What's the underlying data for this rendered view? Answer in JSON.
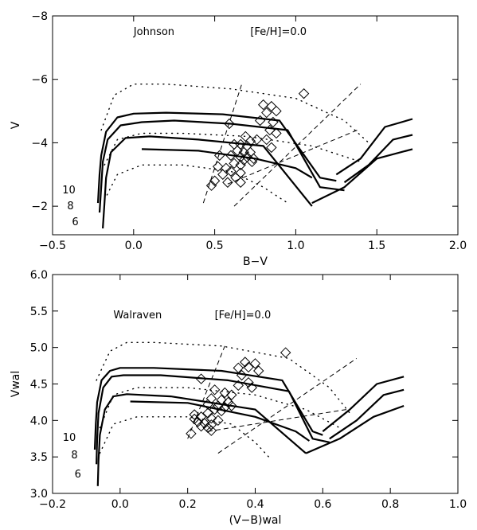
{
  "chart_data": [
    {
      "type": "scatter",
      "xlabel": "B−V",
      "ylabel": "V",
      "xlim": [
        -0.5,
        2.0
      ],
      "ylim": [
        -1.1,
        -8.0
      ],
      "y_inverted": true,
      "grid": false,
      "xticks": [
        "−0.5",
        "0.0",
        "0.5",
        "1.0",
        "1.5",
        "2.0"
      ],
      "xtick_values": [
        -0.5,
        0.0,
        0.5,
        1.0,
        1.5,
        2.0
      ],
      "yticks": [
        "−2",
        "−4",
        "−6",
        "−8"
      ],
      "ytick_values": [
        -2,
        -4,
        -6,
        -8
      ],
      "annotations": [
        {
          "text": "Johnson",
          "x": 0.0,
          "y": -7.4
        },
        {
          "text": "[Fe/H]=0.0",
          "x": 0.72,
          "y": -7.4
        },
        {
          "text": "10",
          "x": -0.44,
          "y": -2.4
        },
        {
          "text": "8",
          "x": -0.41,
          "y": -1.9
        },
        {
          "text": "6",
          "x": -0.38,
          "y": -1.4
        }
      ],
      "tracks": [
        {
          "label": "10",
          "style": "solid",
          "x": [
            -0.22,
            -0.21,
            -0.2,
            -0.17,
            -0.1,
            0.0,
            0.2,
            0.55,
            0.9,
            1.15,
            1.25
          ],
          "y": [
            -2.1,
            -3.0,
            -3.6,
            -4.35,
            -4.8,
            -4.92,
            -4.95,
            -4.9,
            -4.7,
            -2.9,
            -2.8
          ]
        },
        {
          "label": "10b",
          "style": "solid",
          "x": [
            1.25,
            1.4,
            1.55,
            1.72
          ],
          "y": [
            -3.0,
            -3.5,
            -4.5,
            -4.75
          ]
        },
        {
          "label": "8",
          "style": "solid",
          "x": [
            -0.21,
            -0.2,
            -0.19,
            -0.16,
            -0.08,
            0.05,
            0.25,
            0.6,
            0.95,
            1.15,
            1.3
          ],
          "y": [
            -1.8,
            -2.6,
            -3.4,
            -4.1,
            -4.55,
            -4.65,
            -4.7,
            -4.6,
            -4.4,
            -2.6,
            -2.5
          ]
        },
        {
          "label": "8b",
          "style": "solid",
          "x": [
            1.3,
            1.45,
            1.6,
            1.72
          ],
          "y": [
            -2.75,
            -3.3,
            -4.1,
            -4.25
          ]
        },
        {
          "label": "6",
          "style": "solid",
          "x": [
            -0.19,
            -0.18,
            -0.17,
            -0.14,
            -0.05,
            0.1,
            0.4,
            0.8,
            1.1
          ],
          "y": [
            -1.3,
            -2.1,
            -2.9,
            -3.7,
            -4.15,
            -4.2,
            -4.1,
            -3.9,
            -2.0
          ]
        },
        {
          "label": "6b",
          "style": "solid",
          "x": [
            0.05,
            0.4,
            0.75,
            1.0,
            1.1
          ],
          "y": [
            -3.8,
            -3.75,
            -3.5,
            -3.2,
            -2.9
          ]
        },
        {
          "label": "6c",
          "style": "solid",
          "x": [
            1.1,
            1.3,
            1.5,
            1.72
          ],
          "y": [
            -2.1,
            -2.6,
            -3.5,
            -3.8
          ]
        },
        {
          "label": "12",
          "style": "dotted",
          "x": [
            -0.2,
            -0.12,
            0.0,
            0.2,
            0.6,
            1.0,
            1.3,
            1.45
          ],
          "y": [
            -4.4,
            -5.5,
            -5.85,
            -5.85,
            -5.7,
            -5.4,
            -4.7,
            -4.0
          ]
        },
        {
          "label": "9",
          "style": "dotted",
          "x": [
            -0.18,
            -0.1,
            0.05,
            0.3,
            0.7,
            1.1,
            1.4
          ],
          "y": [
            -3.3,
            -4.1,
            -4.3,
            -4.3,
            -4.2,
            -3.9,
            -3.4
          ]
        },
        {
          "label": "7",
          "style": "dotted",
          "x": [
            -0.18,
            -0.1,
            0.05,
            0.3,
            0.6,
            0.8,
            0.95
          ],
          "y": [
            -2.2,
            -3.0,
            -3.3,
            -3.3,
            -3.1,
            -2.6,
            -2.1
          ]
        }
      ],
      "instability_strip": [
        {
          "x": [
            0.43,
            0.67
          ],
          "y": [
            -2.1,
            -5.9
          ]
        },
        {
          "x": [
            0.62,
            1.4
          ],
          "y": [
            -2.0,
            -5.85
          ]
        },
        {
          "x": [
            0.58,
            1.38
          ],
          "y": [
            -2.7,
            -4.4
          ]
        }
      ],
      "points": [
        {
          "x": 1.05,
          "y": -5.55
        },
        {
          "x": 0.8,
          "y": -5.2
        },
        {
          "x": 0.85,
          "y": -5.15
        },
        {
          "x": 0.88,
          "y": -5.0
        },
        {
          "x": 0.82,
          "y": -4.95
        },
        {
          "x": 0.78,
          "y": -4.7
        },
        {
          "x": 0.86,
          "y": -4.65
        },
        {
          "x": 0.59,
          "y": -4.6
        },
        {
          "x": 0.84,
          "y": -4.4
        },
        {
          "x": 0.88,
          "y": -4.3
        },
        {
          "x": 0.69,
          "y": -4.2
        },
        {
          "x": 0.76,
          "y": -4.1
        },
        {
          "x": 0.82,
          "y": -4.1
        },
        {
          "x": 0.72,
          "y": -4.05
        },
        {
          "x": 0.62,
          "y": -3.95
        },
        {
          "x": 0.66,
          "y": -3.95
        },
        {
          "x": 0.7,
          "y": -3.9
        },
        {
          "x": 0.85,
          "y": -3.85
        },
        {
          "x": 0.64,
          "y": -3.75
        },
        {
          "x": 0.68,
          "y": -3.7
        },
        {
          "x": 0.72,
          "y": -3.7
        },
        {
          "x": 0.53,
          "y": -3.6
        },
        {
          "x": 0.6,
          "y": -3.6
        },
        {
          "x": 0.66,
          "y": -3.55
        },
        {
          "x": 0.7,
          "y": -3.55
        },
        {
          "x": 0.74,
          "y": -3.5
        },
        {
          "x": 0.68,
          "y": -3.45
        },
        {
          "x": 0.73,
          "y": -3.4
        },
        {
          "x": 0.62,
          "y": -3.35
        },
        {
          "x": 0.66,
          "y": -3.3
        },
        {
          "x": 0.52,
          "y": -3.25
        },
        {
          "x": 0.57,
          "y": -3.2
        },
        {
          "x": 0.6,
          "y": -3.1
        },
        {
          "x": 0.66,
          "y": -3.05
        },
        {
          "x": 0.55,
          "y": -3.0
        },
        {
          "x": 0.63,
          "y": -2.9
        },
        {
          "x": 0.5,
          "y": -2.8
        },
        {
          "x": 0.58,
          "y": -2.75
        },
        {
          "x": 0.66,
          "y": -2.75
        },
        {
          "x": 0.48,
          "y": -2.65
        }
      ]
    },
    {
      "type": "scatter",
      "xlabel": "(V−B)wal",
      "ylabel": "Vwal",
      "xlim": [
        -0.2,
        1.0
      ],
      "ylim": [
        3.0,
        6.0
      ],
      "grid": false,
      "xticks": [
        "−0.2",
        "0.0",
        "0.2",
        "0.4",
        "0.6",
        "0.8",
        "1.0"
      ],
      "xtick_values": [
        -0.2,
        0.0,
        0.2,
        0.4,
        0.6,
        0.8,
        1.0
      ],
      "yticks": [
        "3.0",
        "3.5",
        "4.0",
        "4.5",
        "5.0",
        "5.5",
        "6.0"
      ],
      "ytick_values": [
        3.0,
        3.5,
        4.0,
        4.5,
        5.0,
        5.5,
        6.0
      ],
      "annotations": [
        {
          "text": "Walraven",
          "x": -0.02,
          "y": 5.4
        },
        {
          "text": "[Fe/H]=0.0",
          "x": 0.28,
          "y": 5.4
        },
        {
          "text": "10",
          "x": -0.17,
          "y": 3.72
        },
        {
          "text": "8",
          "x": -0.145,
          "y": 3.48
        },
        {
          "text": "6",
          "x": -0.135,
          "y": 3.22
        }
      ],
      "tracks": [
        {
          "label": "10",
          "style": "solid",
          "x": [
            -0.075,
            -0.072,
            -0.068,
            -0.055,
            -0.03,
            0.0,
            0.1,
            0.3,
            0.48,
            0.57,
            0.6
          ],
          "y": [
            3.6,
            3.95,
            4.25,
            4.55,
            4.68,
            4.72,
            4.72,
            4.68,
            4.55,
            3.85,
            3.8
          ]
        },
        {
          "label": "10b",
          "style": "solid",
          "x": [
            0.6,
            0.68,
            0.76,
            0.84
          ],
          "y": [
            3.85,
            4.15,
            4.5,
            4.6
          ]
        },
        {
          "label": "8",
          "style": "solid",
          "x": [
            -0.07,
            -0.068,
            -0.064,
            -0.05,
            -0.025,
            0.01,
            0.12,
            0.32,
            0.5,
            0.57,
            0.62
          ],
          "y": [
            3.4,
            3.75,
            4.1,
            4.45,
            4.6,
            4.62,
            4.62,
            4.55,
            4.4,
            3.75,
            3.7
          ]
        },
        {
          "label": "8b",
          "style": "solid",
          "x": [
            0.62,
            0.7,
            0.78,
            0.84
          ],
          "y": [
            3.75,
            4.0,
            4.35,
            4.42
          ]
        },
        {
          "label": "6",
          "style": "solid",
          "x": [
            -0.066,
            -0.064,
            -0.06,
            -0.045,
            -0.02,
            0.02,
            0.15,
            0.4,
            0.55
          ],
          "y": [
            3.1,
            3.45,
            3.8,
            4.15,
            4.33,
            4.36,
            4.33,
            4.15,
            3.55
          ]
        },
        {
          "label": "6b",
          "style": "solid",
          "x": [
            0.03,
            0.2,
            0.4,
            0.52,
            0.56
          ],
          "y": [
            4.26,
            4.24,
            4.05,
            3.85,
            3.72
          ]
        },
        {
          "label": "6c",
          "style": "solid",
          "x": [
            0.55,
            0.65,
            0.75,
            0.84
          ],
          "y": [
            3.55,
            3.75,
            4.05,
            4.2
          ]
        },
        {
          "label": "12",
          "style": "dotted",
          "x": [
            -0.07,
            -0.03,
            0.02,
            0.1,
            0.3,
            0.5,
            0.62,
            0.68
          ],
          "y": [
            4.55,
            4.95,
            5.07,
            5.07,
            5.02,
            4.85,
            4.45,
            4.1
          ]
        },
        {
          "label": "9",
          "style": "dotted",
          "x": [
            -0.06,
            -0.02,
            0.05,
            0.2,
            0.4,
            0.55,
            0.65
          ],
          "y": [
            3.9,
            4.35,
            4.45,
            4.45,
            4.35,
            4.15,
            3.9
          ]
        },
        {
          "label": "7",
          "style": "dotted",
          "x": [
            -0.06,
            -0.02,
            0.05,
            0.2,
            0.33,
            0.4,
            0.44
          ],
          "y": [
            3.55,
            3.95,
            4.05,
            4.05,
            3.95,
            3.7,
            3.5
          ]
        }
      ],
      "instability_strip": [
        {
          "x": [
            0.2,
            0.31
          ],
          "y": [
            3.75,
            5.02
          ]
        },
        {
          "x": [
            0.29,
            0.7
          ],
          "y": [
            3.55,
            4.85
          ]
        },
        {
          "x": [
            0.26,
            0.67
          ],
          "y": [
            3.85,
            4.15
          ]
        }
      ],
      "points": [
        {
          "x": 0.49,
          "y": 4.93
        },
        {
          "x": 0.37,
          "y": 4.8
        },
        {
          "x": 0.4,
          "y": 4.78
        },
        {
          "x": 0.38,
          "y": 4.73
        },
        {
          "x": 0.35,
          "y": 4.72
        },
        {
          "x": 0.41,
          "y": 4.68
        },
        {
          "x": 0.36,
          "y": 4.62
        },
        {
          "x": 0.24,
          "y": 4.57
        },
        {
          "x": 0.38,
          "y": 4.52
        },
        {
          "x": 0.35,
          "y": 4.48
        },
        {
          "x": 0.39,
          "y": 4.45
        },
        {
          "x": 0.28,
          "y": 4.42
        },
        {
          "x": 0.31,
          "y": 4.38
        },
        {
          "x": 0.33,
          "y": 4.35
        },
        {
          "x": 0.27,
          "y": 4.3
        },
        {
          "x": 0.3,
          "y": 4.28
        },
        {
          "x": 0.32,
          "y": 4.25
        },
        {
          "x": 0.26,
          "y": 4.22
        },
        {
          "x": 0.29,
          "y": 4.2
        },
        {
          "x": 0.31,
          "y": 4.18
        },
        {
          "x": 0.28,
          "y": 4.15
        },
        {
          "x": 0.3,
          "y": 4.13
        },
        {
          "x": 0.26,
          "y": 4.1
        },
        {
          "x": 0.22,
          "y": 4.08
        },
        {
          "x": 0.24,
          "y": 4.05
        },
        {
          "x": 0.27,
          "y": 4.03
        },
        {
          "x": 0.29,
          "y": 4.0
        },
        {
          "x": 0.23,
          "y": 3.98
        },
        {
          "x": 0.25,
          "y": 3.96
        },
        {
          "x": 0.27,
          "y": 3.94
        },
        {
          "x": 0.24,
          "y": 3.92
        },
        {
          "x": 0.26,
          "y": 3.9
        },
        {
          "x": 0.21,
          "y": 3.82
        },
        {
          "x": 0.27,
          "y": 3.86
        },
        {
          "x": 0.33,
          "y": 4.2
        },
        {
          "x": 0.22,
          "y": 4.02
        }
      ]
    }
  ]
}
